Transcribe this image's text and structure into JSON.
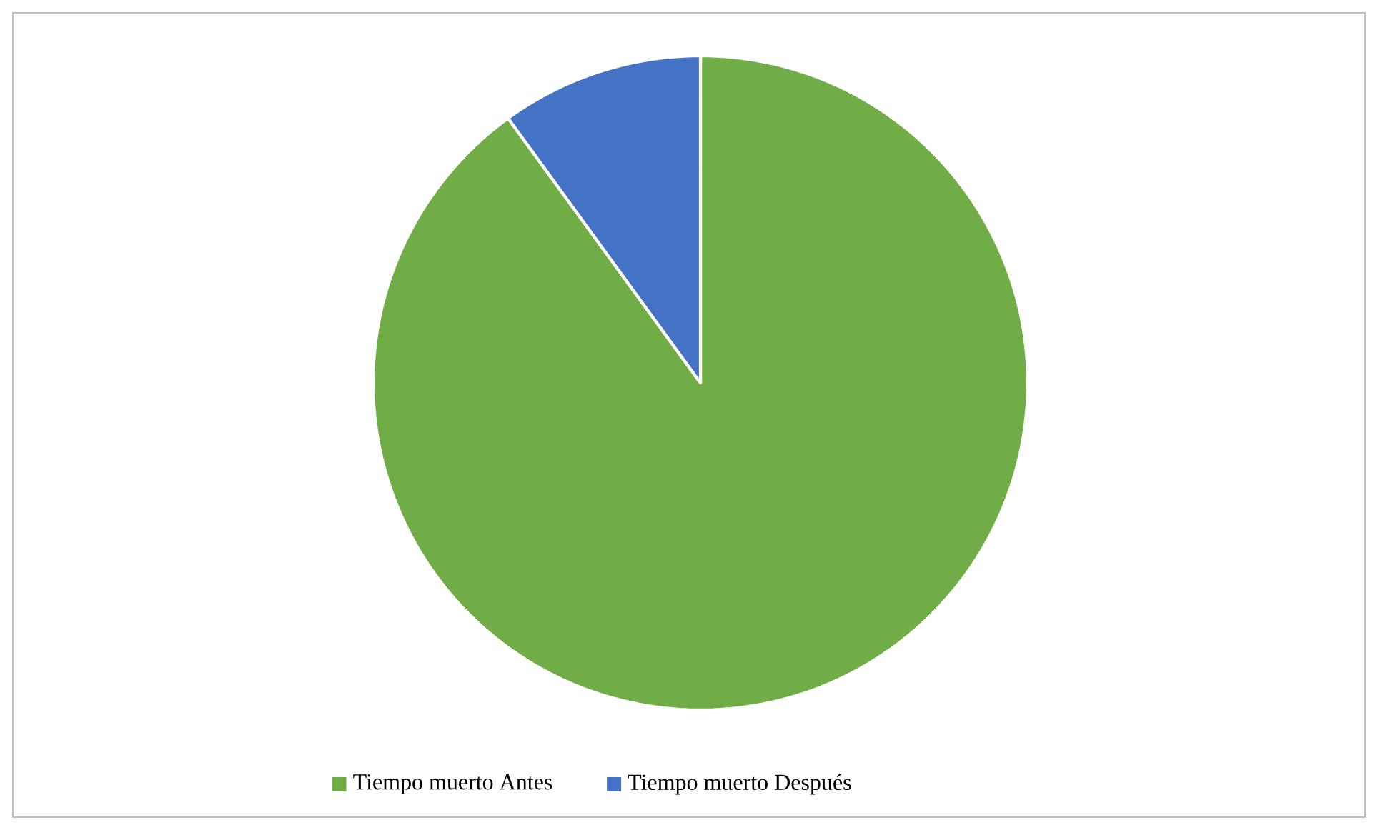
{
  "chart_data": {
    "type": "pie",
    "categories": [
      "Tiempo muerto Antes",
      "Tiempo muerto Después"
    ],
    "values": [
      90,
      10
    ],
    "colors": [
      "#70ad47",
      "#4472c4"
    ],
    "legend": "bottom"
  }
}
